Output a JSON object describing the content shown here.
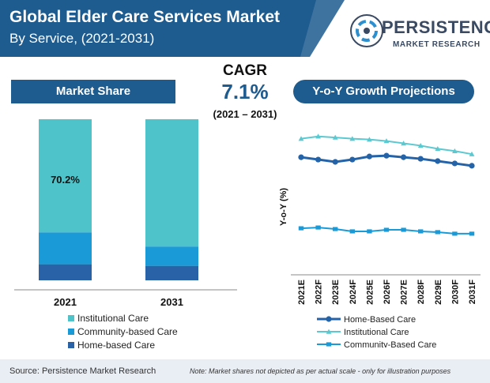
{
  "header": {
    "title": "Global Elder Care Services Market",
    "subtitle": "By Service, (2021-2031)"
  },
  "logo": {
    "name": "PERSISTENCE",
    "tagline": "MARKET RESEARCH"
  },
  "cagr": {
    "label": "CAGR",
    "value": "7.1%",
    "period": "(2021 – 2031)"
  },
  "market_share": {
    "title": "Market Share"
  },
  "yoy": {
    "title": "Y-o-Y Growth Projections"
  },
  "footer": {
    "source": "Source: Persistence Market Research",
    "note": "Note: Market shares not depicted as per actual scale - only for illustration purposes"
  },
  "colors": {
    "header_bg": "#1e5b8f",
    "institutional": "#4ec3c9",
    "community": "#1a9ad6",
    "home": "#2a62a8",
    "line_home": "#2563a8",
    "line_inst": "#5cc9d0",
    "line_comm": "#1a9ad6"
  },
  "chart_data": [
    {
      "type": "bar",
      "stacked": true,
      "categories": [
        "2021",
        "2031"
      ],
      "series": [
        {
          "name": "Home-based Care",
          "values": [
            10,
            9
          ]
        },
        {
          "name": "Community-based Care",
          "values": [
            19.8,
            12
          ]
        },
        {
          "name": "Institutional Care",
          "values": [
            70.2,
            79
          ]
        }
      ],
      "data_labels": [
        {
          "category": "2021",
          "series": "Institutional Care",
          "text": "70.2%"
        }
      ],
      "ylim": [
        0,
        100
      ],
      "legend_position": "bottom"
    },
    {
      "type": "line",
      "x": [
        "2021E",
        "2022F",
        "2023E",
        "2024F",
        "2025E",
        "2026F",
        "2027E",
        "2028F",
        "2029E",
        "2030F",
        "2031F"
      ],
      "ylabel": "Y-o-Y (%)",
      "series": [
        {
          "name": "Home-Based Care",
          "values": [
            7.0,
            6.85,
            6.7,
            6.85,
            7.05,
            7.1,
            7.0,
            6.9,
            6.75,
            6.6,
            6.45
          ]
        },
        {
          "name": "Institutional Care",
          "values": [
            8.2,
            8.35,
            8.28,
            8.2,
            8.15,
            8.05,
            7.9,
            7.75,
            7.55,
            7.4,
            7.2
          ]
        },
        {
          "name": "Community-Based Care",
          "values": [
            2.4,
            2.45,
            2.35,
            2.2,
            2.2,
            2.3,
            2.3,
            2.2,
            2.15,
            2.05,
            2.05
          ]
        }
      ],
      "ylim": [
        0,
        9
      ],
      "grid": false,
      "legend_position": "bottom"
    }
  ]
}
